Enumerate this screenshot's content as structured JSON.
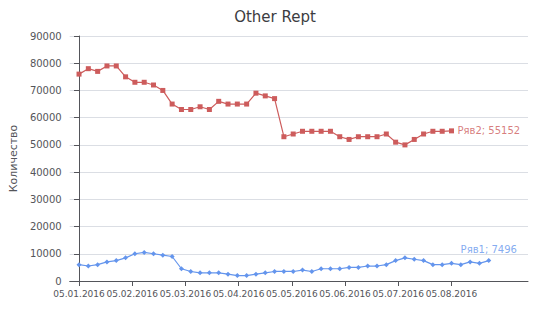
{
  "chart_data": {
    "type": "line",
    "title": "Other Rept",
    "ylabel": "Количество",
    "xlim": [
      -1,
      48.214285714285715
    ],
    "xticks": [
      {
        "value": 0,
        "label": "05.01.2016"
      },
      {
        "value": 5.714285714285714,
        "label": "05.02.2016"
      },
      {
        "value": 11.428571428571429,
        "label": "05.03.2016"
      },
      {
        "value": 17.142857142857142,
        "label": "05.04.2016"
      },
      {
        "value": 22.857142857142858,
        "label": "05.05.2016"
      },
      {
        "value": 28.571428571428573,
        "label": "05.06.2016"
      },
      {
        "value": 34.285714285714285,
        "label": "05.07.2016"
      },
      {
        "value": 40,
        "label": "05.08.2016"
      }
    ],
    "ylim": [
      0,
      90000
    ],
    "yticks": [
      0,
      10000,
      20000,
      30000,
      40000,
      50000,
      60000,
      70000,
      80000,
      90000
    ],
    "grid": true,
    "series": [
      {
        "color": "#CD5C5C",
        "marker": "square",
        "x": [
          0,
          1,
          2,
          3,
          4,
          5,
          6,
          7,
          8,
          9,
          10,
          11,
          12,
          13,
          14,
          15,
          16,
          17,
          18,
          19,
          20,
          21,
          22,
          23,
          24,
          25,
          26,
          27,
          28,
          29,
          30,
          31,
          32,
          33,
          34,
          35,
          36,
          37,
          38,
          39,
          40
        ],
        "values": [
          76000,
          78000,
          77000,
          79000,
          79000,
          75000,
          73000,
          73000,
          72000,
          70000,
          65000,
          63000,
          63000,
          64000,
          63000,
          66000,
          65000,
          65000,
          65000,
          69000,
          68000,
          67000,
          53000,
          54000,
          55000,
          55000,
          55000,
          55000,
          53000,
          52000,
          53000,
          53000,
          53000,
          54000,
          51000,
          50000,
          52000,
          54000,
          55000,
          55000,
          55152
        ]
      },
      {
        "color": "#6495ED",
        "marker": "diamond",
        "x": [
          0,
          1,
          2,
          3,
          4,
          5,
          6,
          7,
          8,
          9,
          10,
          11,
          12,
          13,
          14,
          15,
          16,
          17,
          18,
          19,
          20,
          21,
          22,
          23,
          24,
          25,
          26,
          27,
          28,
          29,
          30,
          31,
          32,
          33,
          34,
          35,
          36,
          37,
          38,
          39,
          40,
          41,
          42,
          43,
          44
        ],
        "values": [
          6000,
          5500,
          6000,
          7000,
          7500,
          8500,
          10000,
          10500,
          10000,
          9500,
          9000,
          4500,
          3500,
          3000,
          3000,
          3000,
          2500,
          2000,
          2000,
          2500,
          3000,
          3500,
          3500,
          3500,
          4000,
          3500,
          4500,
          4500,
          4500,
          5000,
          5000,
          5500,
          5500,
          6000,
          7500,
          8500,
          8000,
          7500,
          6000,
          6000,
          6500,
          6000,
          7000,
          6500,
          7496
        ]
      }
    ],
    "annotations": [
      {
        "text": "Ряв2; 55152",
        "x": 40,
        "y": 55152,
        "color": "#CD5C5C"
      },
      {
        "text": "Ряв1; 7496",
        "x": 44,
        "y": 7496,
        "color": "#6495ED"
      }
    ]
  }
}
